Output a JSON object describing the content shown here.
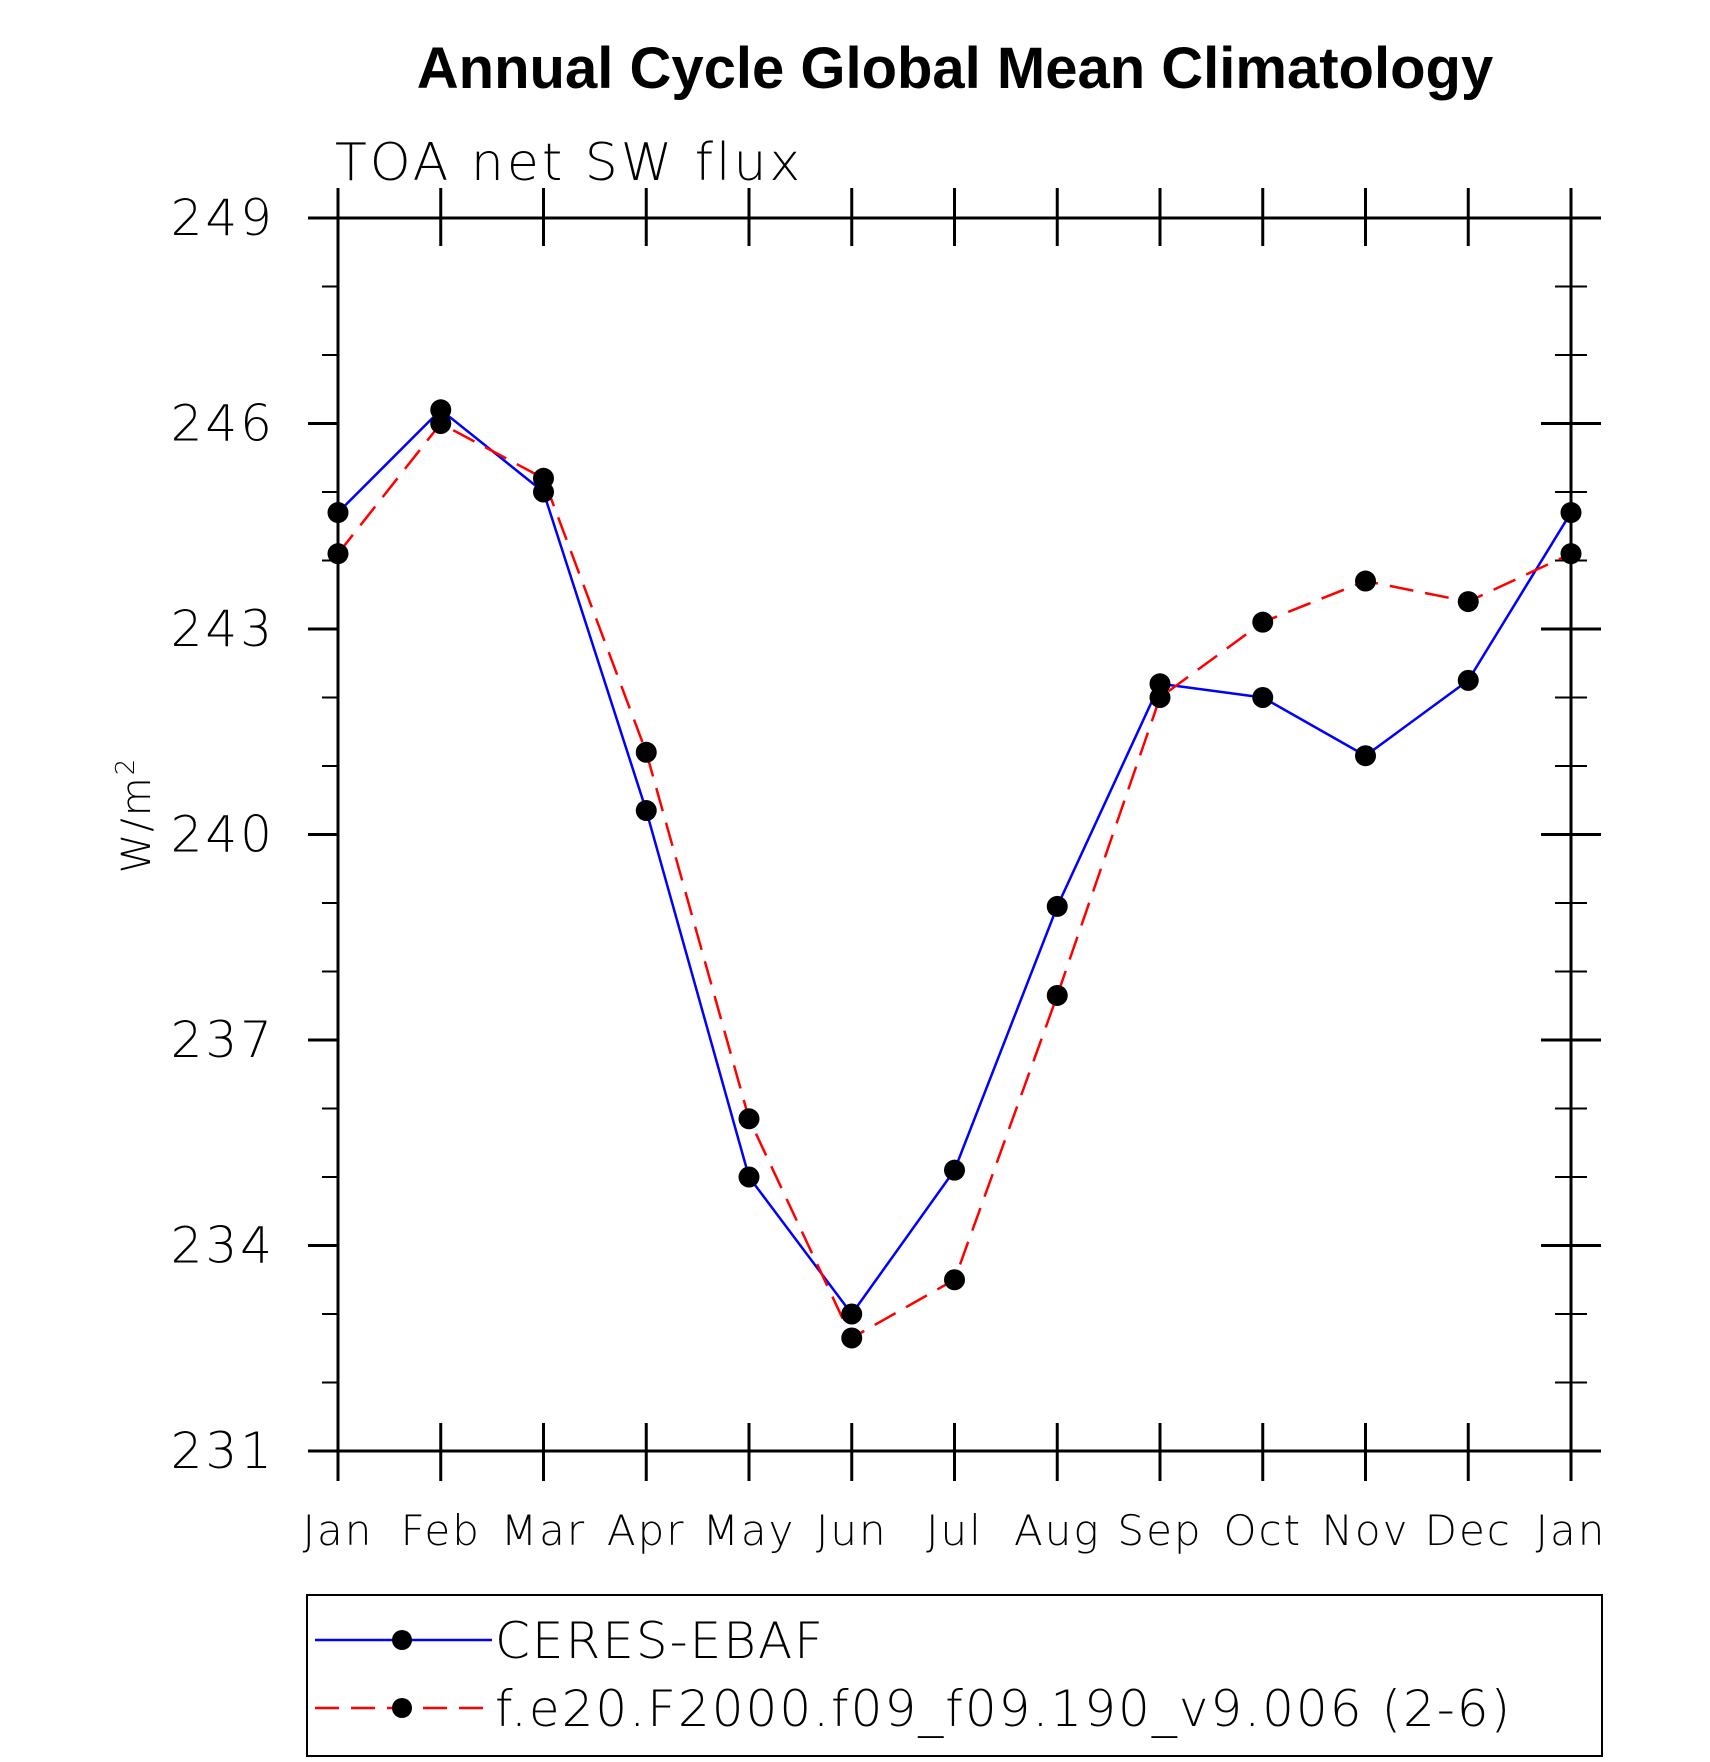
{
  "chart_data": {
    "type": "line",
    "title": "Annual Cycle Global Mean Climatology",
    "subtitle": "TOA net SW flux",
    "ylabel": "W/m",
    "ylabel_superscript": "2",
    "xlabel": "",
    "categories": [
      "Jan",
      "Feb",
      "Mar",
      "Apr",
      "May",
      "Jun",
      "Jul",
      "Aug",
      "Sep",
      "Oct",
      "Nov",
      "Dec",
      "Jan"
    ],
    "ylim": [
      231,
      249
    ],
    "yticks": [
      231,
      234,
      237,
      240,
      243,
      246,
      249
    ],
    "grid": false,
    "legend_position": "bottom",
    "series": [
      {
        "name": "CERES-EBAF",
        "color": "#0000ff",
        "line_style": "solid",
        "marker": "filled-circle",
        "values": [
          244.7,
          246.2,
          245.0,
          240.35,
          235.0,
          233.0,
          235.1,
          238.95,
          242.2,
          242.0,
          241.15,
          242.25,
          244.7
        ]
      },
      {
        "name": "f.e20.F2000.f09_f09.190_v9.006 (2-6)",
        "color": "#ff0000",
        "line_style": "dashed",
        "marker": "filled-circle",
        "values": [
          244.1,
          246.0,
          245.2,
          241.2,
          235.85,
          232.65,
          233.5,
          237.65,
          242.0,
          243.1,
          243.7,
          243.4,
          244.1
        ]
      }
    ]
  }
}
